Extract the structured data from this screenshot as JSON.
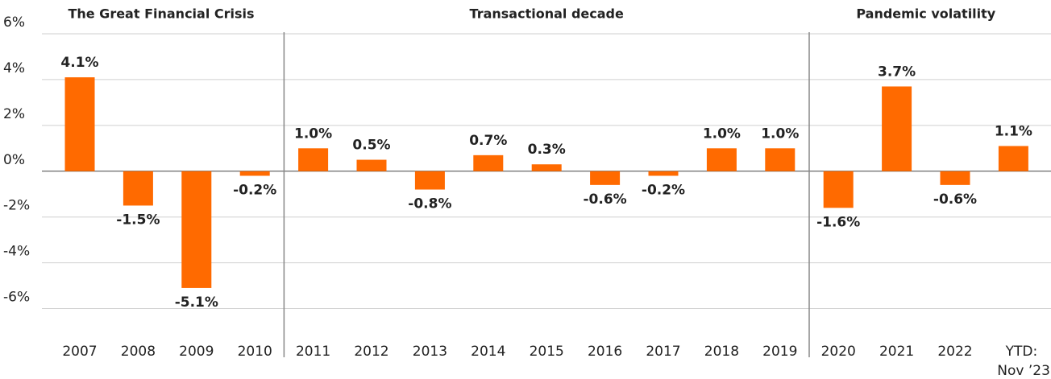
{
  "chart_data": {
    "type": "bar",
    "categories": [
      "2007",
      "2008",
      "2009",
      "2010",
      "2011",
      "2012",
      "2013",
      "2014",
      "2015",
      "2016",
      "2017",
      "2018",
      "2019",
      "2020",
      "2021",
      "2022",
      "YTD: Nov ’23"
    ],
    "values": [
      4.1,
      -1.5,
      -5.1,
      -0.2,
      1.0,
      0.5,
      -0.8,
      0.7,
      0.3,
      -0.6,
      -0.2,
      1.0,
      1.0,
      -1.6,
      3.7,
      -0.6,
      1.1
    ],
    "value_labels": [
      "4.1%",
      "-1.5%",
      "-5.1%",
      "-0.2%",
      "1.0%",
      "0.5%",
      "-0.8%",
      "0.7%",
      "0.3%",
      "-0.6%",
      "-0.2%",
      "1.0%",
      "1.0%",
      "-1.6%",
      "3.7%",
      "-0.6%",
      "1.1%"
    ],
    "color": "#ff6a00",
    "ylim": [
      -7,
      6
    ],
    "yticks": [
      {
        "value": -6,
        "label": "-6%"
      },
      {
        "value": -4,
        "label": "-4%"
      },
      {
        "value": -2,
        "label": "-2%"
      },
      {
        "value": 0,
        "label": "0%"
      },
      {
        "value": 2,
        "label": "2%"
      },
      {
        "value": 4,
        "label": "4%"
      },
      {
        "value": 6,
        "label": "6%"
      }
    ],
    "grid": true,
    "sections": [
      {
        "label": "The Great Financial Crisis",
        "from": "2007",
        "to": "2010"
      },
      {
        "label": "Transactional decade",
        "from": "2011",
        "to": "2019"
      },
      {
        "label": "Pandemic volatility",
        "from": "2020",
        "to": "YTD: Nov ’23"
      }
    ]
  }
}
